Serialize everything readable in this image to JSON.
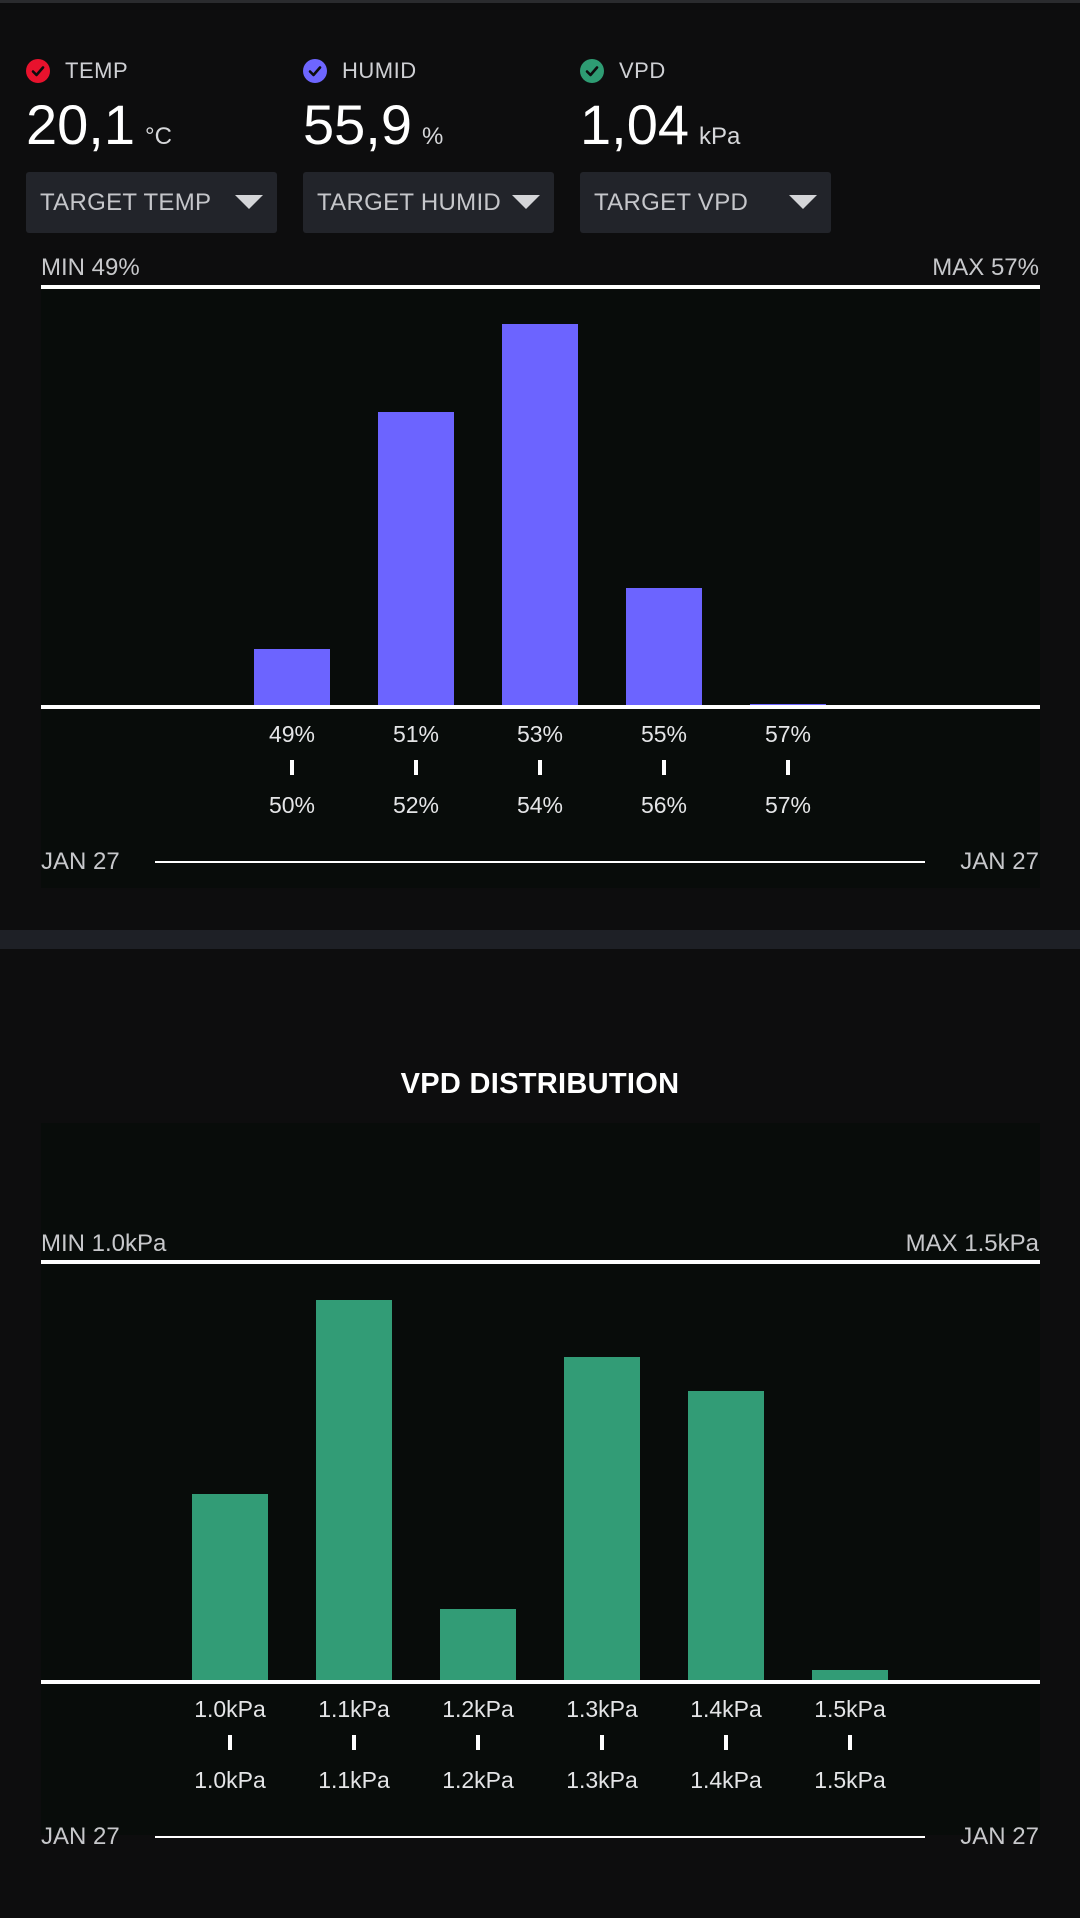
{
  "metrics": [
    {
      "label": "TEMP",
      "value": "20,1",
      "unit": "°C",
      "check_color": "#e8122d"
    },
    {
      "label": "HUMID",
      "value": "55,9",
      "unit": "%",
      "check_color": "#6e66ff"
    },
    {
      "label": "VPD",
      "value": "1,04",
      "unit": "kPa",
      "check_color": "#2e9c73"
    }
  ],
  "dropdowns": [
    {
      "label": "TARGET TEMP"
    },
    {
      "label": "TARGET HUMID"
    },
    {
      "label": "TARGET VPD"
    }
  ],
  "humid_chart": {
    "min_label": "MIN 49%",
    "max_label": "MAX 57%",
    "date_start": "JAN 27",
    "date_end": "JAN 27",
    "color": "#6c64ff",
    "chart_data": {
      "type": "bar",
      "bins": [
        {
          "from": "49%",
          "to": "50%",
          "value": 15
        },
        {
          "from": "51%",
          "to": "52%",
          "value": 77
        },
        {
          "from": "53%",
          "to": "54%",
          "value": 100
        },
        {
          "from": "55%",
          "to": "56%",
          "value": 31
        },
        {
          "from": "57%",
          "to": "57%",
          "value": 0.5
        }
      ]
    }
  },
  "vpd_title": "VPD DISTRIBUTION",
  "vpd_chart": {
    "min_label": "MIN 1.0kPa",
    "max_label": "MAX 1.5kPa",
    "date_start": "JAN 27",
    "date_end": "JAN 27",
    "color": "#329c76",
    "chart_data": {
      "type": "bar",
      "bins": [
        {
          "from": "1.0kPa",
          "to": "1.0kPa",
          "value": 49
        },
        {
          "from": "1.1kPa",
          "to": "1.1kPa",
          "value": 100
        },
        {
          "from": "1.2kPa",
          "to": "1.2kPa",
          "value": 19
        },
        {
          "from": "1.3kPa",
          "to": "1.3kPa",
          "value": 85
        },
        {
          "from": "1.4kPa",
          "to": "1.4kPa",
          "value": 76
        },
        {
          "from": "1.5kPa",
          "to": "1.5kPa",
          "value": 3
        }
      ]
    }
  }
}
